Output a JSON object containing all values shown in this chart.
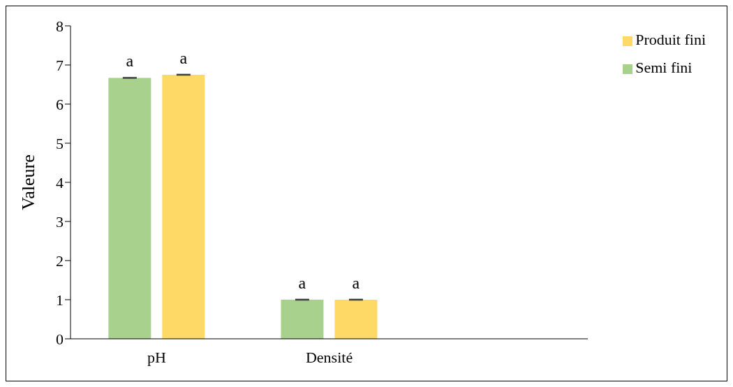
{
  "chart_data": {
    "type": "bar",
    "ylabel": "Valeure",
    "categories": [
      "pH",
      "Densité",
      null
    ],
    "series": [
      {
        "name": "Semi fini",
        "color": "#a9d18e",
        "values": [
          6.67,
          1.0,
          null
        ],
        "errors": [
          0.01,
          0.01,
          null
        ],
        "value_labels": [
          "a",
          "a",
          null
        ]
      },
      {
        "name": "Produit fini",
        "color": "#ffd966",
        "values": [
          6.75,
          1.0,
          null
        ],
        "errors": [
          0.01,
          0.01,
          null
        ],
        "value_labels": [
          "a",
          "a",
          null
        ]
      }
    ],
    "ylim": [
      0,
      8
    ],
    "yticks": [
      0,
      1,
      2,
      3,
      4,
      5,
      6,
      7,
      8
    ],
    "grid": false,
    "legend": "top right"
  }
}
